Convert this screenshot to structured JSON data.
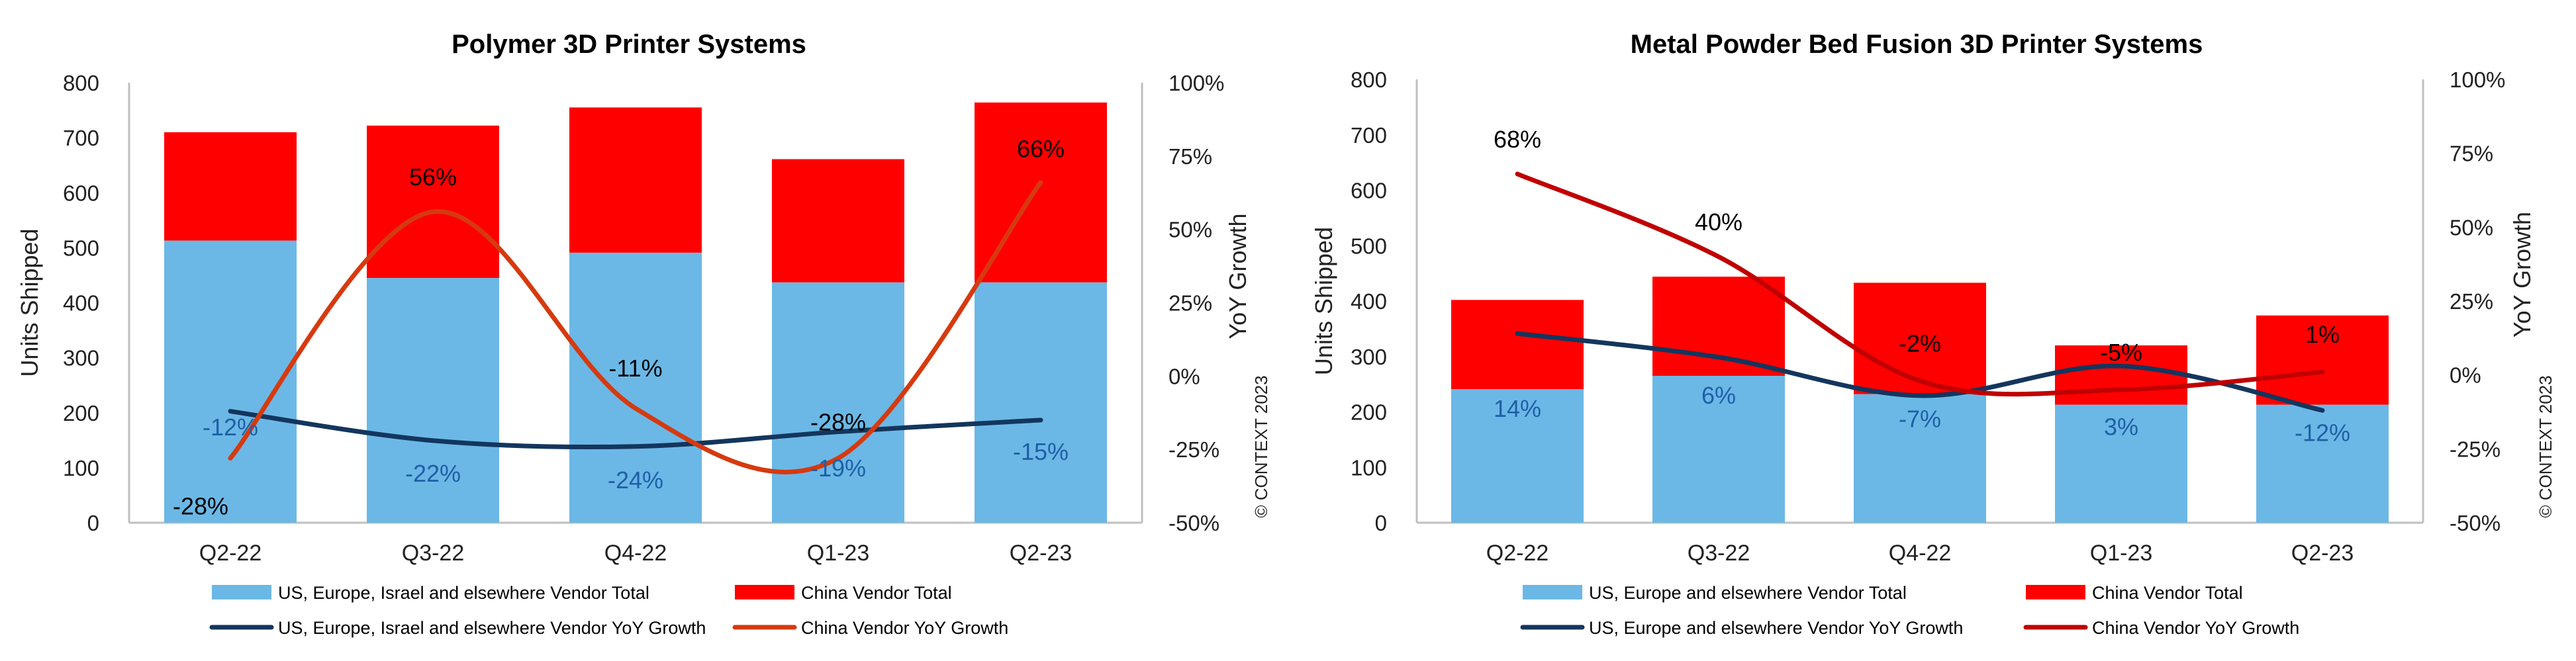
{
  "copyright": "© CONTEXT 2023",
  "chart_data": [
    {
      "type": "bar",
      "title": "Polymer 3D Printer Systems",
      "xlabel": "",
      "ylabel": "Units Shipped",
      "y2label": "YoY Growth",
      "ylim": [
        0,
        800
      ],
      "yticks": [
        "0",
        "100",
        "200",
        "300",
        "400",
        "500",
        "600",
        "700",
        "800"
      ],
      "y2lim": [
        -50,
        100
      ],
      "y2ticks": [
        "-50%",
        "-25%",
        "0%",
        "25%",
        "50%",
        "75%",
        "100%"
      ],
      "categories": [
        "Q2-22",
        "Q3-22",
        "Q4-22",
        "Q1-23",
        "Q2-23"
      ],
      "stacked": true,
      "grid": false,
      "legend_position": "bottom",
      "series": [
        {
          "name": "US, Europe, Israel and elsewhere Vendor Total",
          "kind": "bar",
          "color": "#6bb8e6",
          "values": [
            513,
            445,
            491,
            437,
            437
          ]
        },
        {
          "name": "China Vendor Total",
          "kind": "bar",
          "color": "#ff0000",
          "values": [
            197,
            277,
            264,
            224,
            327
          ]
        },
        {
          "name": "US, Europe, Israel and elsewhere Vendor YoY Growth",
          "kind": "line",
          "axis": "y2",
          "color": "#13365e",
          "values": [
            -12,
            -22,
            -24,
            -19,
            -15
          ]
        },
        {
          "name": "China Vendor YoY Growth",
          "kind": "line",
          "axis": "y2",
          "color": "#d63a0f",
          "values": [
            -28,
            56,
            -11,
            -28,
            66
          ]
        }
      ],
      "annotations": {
        "base_growth": [
          "-12%",
          "-22%",
          "-24%",
          "-19%",
          "-15%"
        ],
        "china_growth": [
          "-28%",
          "56%",
          "-11%",
          "-28%",
          "66%"
        ]
      }
    },
    {
      "type": "bar",
      "title": "Metal Powder Bed Fusion 3D Printer Systems",
      "xlabel": "",
      "ylabel": "Units Shipped",
      "y2label": "YoY Growth",
      "ylim": [
        0,
        800
      ],
      "yticks": [
        "0",
        "100",
        "200",
        "300",
        "400",
        "500",
        "600",
        "700",
        "800"
      ],
      "y2lim": [
        -50,
        100
      ],
      "y2ticks": [
        "-50%",
        "-25%",
        "0%",
        "25%",
        "50%",
        "75%",
        "100%"
      ],
      "categories": [
        "Q2-22",
        "Q3-22",
        "Q4-22",
        "Q1-23",
        "Q2-23"
      ],
      "stacked": true,
      "grid": false,
      "legend_position": "bottom",
      "series": [
        {
          "name": "US, Europe and elsewhere Vendor Total",
          "kind": "bar",
          "color": "#6bb8e6",
          "values": [
            241,
            265,
            232,
            213,
            213
          ]
        },
        {
          "name": "China Vendor Total",
          "kind": "bar",
          "color": "#ff0000",
          "values": [
            161,
            179,
            201,
            107,
            161
          ]
        },
        {
          "name": "US, Europe and elsewhere Vendor YoY Growth",
          "kind": "line",
          "axis": "y2",
          "color": "#13365e",
          "values": [
            14,
            6,
            -7,
            3,
            -12
          ]
        },
        {
          "name": "China Vendor YoY Growth",
          "kind": "line",
          "axis": "y2",
          "color": "#c00000",
          "values": [
            68,
            40,
            -2,
            -5,
            1
          ]
        }
      ],
      "annotations": {
        "base_growth": [
          "14%",
          "6%",
          "-7%",
          "3%",
          "-12%"
        ],
        "china_growth": [
          "68%",
          "40%",
          "-2%",
          "-5%",
          "1%"
        ]
      }
    }
  ]
}
